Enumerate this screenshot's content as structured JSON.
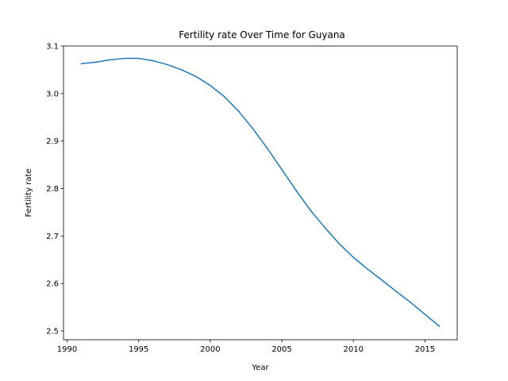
{
  "chart_data": {
    "type": "line",
    "title": "Fertility rate Over Time for Guyana",
    "xlabel": "Year",
    "ylabel": "Fertility rate",
    "xlim": [
      1989.75,
      2017.25
    ],
    "ylim": [
      2.4816,
      3.1
    ],
    "grid": false,
    "legend": "none",
    "x_ticks": [
      1990,
      1995,
      2000,
      2005,
      2010,
      2015
    ],
    "y_ticks": [
      2.5,
      2.6,
      2.7,
      2.8,
      2.9,
      3.0,
      3.1
    ],
    "x_tick_labels": [
      "1990",
      "1995",
      "2000",
      "2005",
      "2010",
      "2015"
    ],
    "y_tick_labels": [
      "2.5",
      "2.6",
      "2.7",
      "2.8",
      "2.9",
      "3.0",
      "3.1"
    ],
    "series": [
      {
        "color": "#1f77b4",
        "x": [
          1991,
          1992,
          1993,
          1994,
          1995,
          1996,
          1997,
          1998,
          1999,
          2000,
          2001,
          2002,
          2003,
          2004,
          2005,
          2006,
          2007,
          2008,
          2009,
          2010,
          2011,
          2012,
          2013,
          2014,
          2015,
          2016
        ],
        "y": [
          3.063,
          3.066,
          3.071,
          3.074,
          3.074,
          3.069,
          3.061,
          3.05,
          3.036,
          3.017,
          2.993,
          2.962,
          2.925,
          2.884,
          2.84,
          2.796,
          2.754,
          2.718,
          2.684,
          2.655,
          2.63,
          2.607,
          2.583,
          2.56,
          2.535,
          2.51
        ]
      }
    ]
  }
}
